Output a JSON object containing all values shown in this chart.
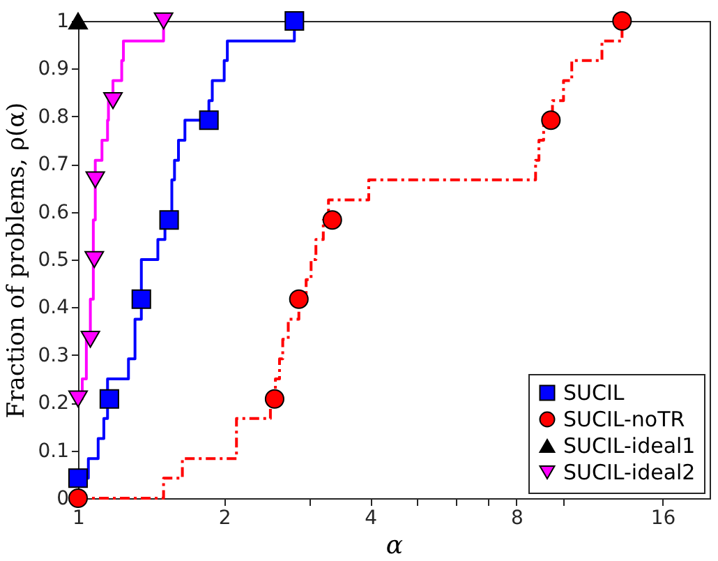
{
  "chart_data": {
    "type": "step",
    "xlabel": "α",
    "ylabel": "Fraction of problems, ρ(α)",
    "log": "x",
    "xlim": [
      1,
      20
    ],
    "xticks": [
      1,
      2,
      {
        "value": 3,
        "label": null
      },
      4,
      {
        "value": 5,
        "label": null
      },
      {
        "value": 6,
        "label": null
      },
      {
        "value": 7,
        "label": null
      },
      8,
      {
        "value": 10,
        "label": null
      },
      16
    ],
    "ylim": [
      0,
      1
    ],
    "yticks": [
      0,
      0.1,
      0.2,
      0.3,
      0.4,
      0.5,
      0.6,
      0.7,
      0.8,
      0.9,
      1
    ],
    "grid": false,
    "legend": "bottom right",
    "series": [
      {
        "name": "SUCIL",
        "type": "step",
        "color": "#0000ff",
        "line_style": "solid",
        "x": [
          1,
          1.05,
          1.1,
          1.13,
          1.15,
          1.27,
          1.31,
          1.35,
          1.46,
          1.51,
          1.56,
          1.58,
          1.61,
          1.66,
          1.86,
          1.89,
          2.0,
          2.03,
          2.79
        ],
        "values": [
          0.042,
          0.083,
          0.125,
          0.167,
          0.25,
          0.292,
          0.375,
          0.5,
          0.542,
          0.583,
          0.667,
          0.708,
          0.75,
          0.792,
          0.833,
          0.875,
          0.917,
          0.958,
          1
        ]
      },
      {
        "name": "SUCIL-noTR",
        "type": "step",
        "color": "#ff0000",
        "line_style": "dashdot",
        "x": [
          1,
          1.5,
          1.64,
          2.12,
          2.49,
          2.55,
          2.6,
          2.64,
          2.71,
          2.85,
          2.95,
          3.02,
          3.09,
          3.2,
          3.28,
          3.97,
          8.76,
          8.9,
          9.1,
          9.49,
          10.0,
          10.4,
          12.0,
          13.2
        ],
        "values": [
          0,
          0.042,
          0.083,
          0.167,
          0.208,
          0.25,
          0.292,
          0.333,
          0.375,
          0.417,
          0.458,
          0.5,
          0.542,
          0.583,
          0.625,
          0.667,
          0.708,
          0.75,
          0.792,
          0.833,
          0.875,
          0.917,
          0.958,
          1
        ]
      },
      {
        "name": "SUCIL-ideal1",
        "type": "scatter",
        "color": "#000000",
        "marker": "triangle-up",
        "x": [
          1
        ],
        "values": [
          1
        ]
      },
      {
        "name": "SUCIL-ideal2",
        "type": "step",
        "color": "#ff00ff",
        "line_style": "solid",
        "x": [
          1,
          1.02,
          1.04,
          1.06,
          1.075,
          1.085,
          1.12,
          1.15,
          1.155,
          1.18,
          1.23,
          1.24,
          1.5
        ],
        "values": [
          0.208,
          0.25,
          0.333,
          0.417,
          0.583,
          0.708,
          0.75,
          0.792,
          0.833,
          0.875,
          0.917,
          0.958,
          1
        ]
      },
      {
        "type": "scatter",
        "color": "#0000ff",
        "marker": "square",
        "x": [
          1,
          1.16,
          1.35,
          1.54,
          1.86,
          2.79
        ],
        "values": [
          0.042,
          0.208,
          0.417,
          0.583,
          0.792,
          1
        ]
      },
      {
        "type": "scatter",
        "color": "#ff0000",
        "marker": "circle",
        "x": [
          1,
          2.54,
          2.85,
          3.34,
          9.42,
          13.2
        ],
        "values": [
          0,
          0.208,
          0.417,
          0.583,
          0.792,
          1
        ]
      },
      {
        "type": "scatter",
        "color": "#ff00ff",
        "marker": "triangle-down",
        "x": [
          1,
          1.06,
          1.08,
          1.085,
          1.18,
          1.5
        ],
        "values": [
          0.208,
          0.333,
          0.5,
          0.667,
          0.833,
          1
        ]
      }
    ]
  }
}
